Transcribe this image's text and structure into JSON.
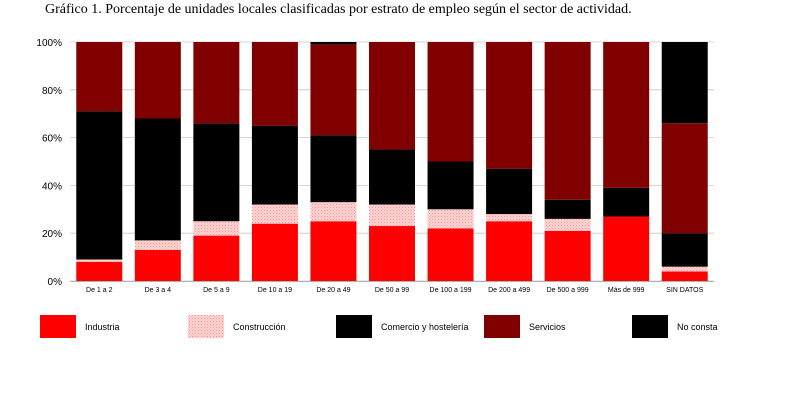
{
  "chart_data": {
    "type": "bar",
    "stacked": true,
    "percent": true,
    "title": "Gráfico 1. Porcentaje de unidades locales clasificadas por estrato de empleo según el sector de actividad.",
    "categories": [
      "De 1 a 2",
      "De 3 a 4",
      "De 5 a 9",
      "De 10 a 19",
      "De 20 a 49",
      "De 50 a 99",
      "De 100 a 199",
      "De 200 a 499",
      "De 500 a 999",
      "Más de 999",
      "SIN DATOS"
    ],
    "ylim": [
      0,
      100
    ],
    "yticks": [
      "0%",
      "20%",
      "40%",
      "60%",
      "80%",
      "100%"
    ],
    "grid": true,
    "legend_position": "bottom",
    "series": [
      {
        "name": "Industria",
        "color": "#ff0000",
        "pattern": "solid",
        "values": [
          8,
          13,
          19,
          24,
          25,
          23,
          22,
          25,
          21,
          27,
          4
        ]
      },
      {
        "name": "Construcción",
        "color": "#ffc6c6",
        "pattern": "dots",
        "values": [
          1,
          4,
          6,
          8,
          8,
          9,
          8,
          3,
          5,
          0,
          2
        ]
      },
      {
        "name": "Comercio y hostelería",
        "color": "#efe4b8",
        "pattern": "dots",
        "values": [
          62,
          51,
          41,
          33,
          28,
          23,
          20,
          19,
          8,
          12,
          14
        ]
      },
      {
        "name": "Servicios",
        "color": "#800000",
        "pattern": "solid",
        "values": [
          29,
          32,
          34,
          35,
          38,
          45,
          50,
          53,
          66,
          61,
          46
        ]
      },
      {
        "name": "No consta",
        "color": "#f28b8b",
        "pattern": "dots",
        "values": [
          0,
          0,
          0,
          0,
          1,
          0,
          0,
          0,
          0,
          0,
          34
        ]
      }
    ]
  }
}
